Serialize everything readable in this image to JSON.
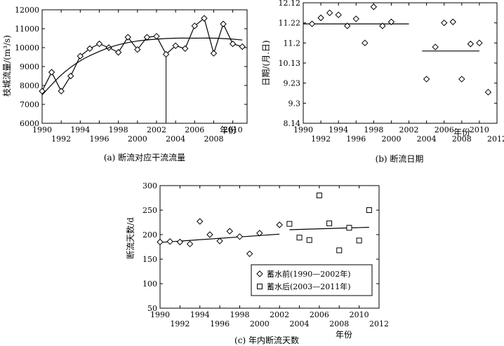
{
  "chart_data": [
    {
      "type": "line",
      "caption": "(a) 断流对应干流流量",
      "ylabel": "枝城流量/(m³/s)",
      "xlabel": "年份",
      "xlim": [
        1990,
        2011.5
      ],
      "ylim": [
        6000,
        12000
      ],
      "x_ticks": [
        1990,
        1992,
        1994,
        1996,
        1998,
        2000,
        2002,
        2004,
        2006,
        2008,
        2010
      ],
      "y_ticks": [
        6000,
        7000,
        8000,
        9000,
        10000,
        11000,
        12000
      ],
      "series": [
        {
          "marker": "diamond",
          "x": [
            1990,
            1991,
            1992,
            1993,
            1994,
            1995,
            1996,
            1997,
            1998,
            1999,
            2000,
            2001,
            2002,
            2003,
            2004,
            2005,
            2006,
            2007,
            2008,
            2009,
            2010,
            2011
          ],
          "y": [
            7700,
            8700,
            7700,
            8500,
            9550,
            9950,
            10200,
            10000,
            9750,
            10550,
            9900,
            10550,
            10600,
            9650,
            10100,
            9950,
            11150,
            11550,
            9700,
            11250,
            10200,
            10050
          ]
        },
        {
          "style": "smooth-trend",
          "x": [
            1990,
            1992,
            1994,
            1996,
            1998,
            2000,
            2002,
            2004,
            2006,
            2008,
            2010,
            2011
          ],
          "y": [
            7500,
            8550,
            9300,
            9800,
            10150,
            10350,
            10450,
            10500,
            10500,
            10500,
            10450,
            10400
          ]
        }
      ],
      "annotations": [
        {
          "type": "vertical-line",
          "x": 2003
        }
      ]
    },
    {
      "type": "scatter",
      "caption": "(b) 断流日期",
      "ylabel": "日期/(月.日)",
      "xlabel": "年份",
      "xlim": [
        1990,
        2012
      ],
      "ylim": [
        0,
        6
      ],
      "x_ticks": [
        1990,
        1992,
        1994,
        1996,
        1998,
        2000,
        2002,
        2004,
        2006,
        2008,
        2010,
        2012
      ],
      "y_ticks": [
        0,
        1,
        2,
        3,
        4,
        5,
        6
      ],
      "y_tick_labels": [
        "8.14",
        "9.3",
        "9.23",
        "10.13",
        "11.2",
        "11.22",
        "12.12"
      ],
      "series": [
        {
          "marker": "diamond",
          "x": [
            1991,
            1992,
            1993,
            1994,
            1995,
            1996,
            1997,
            1998,
            1999,
            2000,
            2004,
            2005,
            2006,
            2007,
            2008,
            2009,
            2010,
            2011
          ],
          "y": [
            4.95,
            5.25,
            5.5,
            5.4,
            4.85,
            5.2,
            4.0,
            5.8,
            4.85,
            5.05,
            2.2,
            3.8,
            5.0,
            5.05,
            2.2,
            3.95,
            4.0,
            1.55
          ]
        }
      ],
      "trend_lines": [
        {
          "x": [
            1990,
            2002
          ],
          "y": [
            4.95,
            4.95
          ]
        },
        {
          "x": [
            2003.5,
            2010
          ],
          "y": [
            3.6,
            3.6
          ]
        }
      ]
    },
    {
      "type": "scatter",
      "caption": "(c) 年内断流天数",
      "ylabel": "断流天数/d",
      "xlabel": "年份",
      "xlim": [
        1990,
        2012
      ],
      "ylim": [
        50,
        300
      ],
      "x_ticks": [
        1990,
        1992,
        1994,
        1996,
        1998,
        2000,
        2002,
        2004,
        2006,
        2008,
        2010,
        2012
      ],
      "y_ticks": [
        50,
        100,
        150,
        200,
        250,
        300
      ],
      "legend": "lower-right",
      "series": [
        {
          "name": "蓄水前(1990—2002年)",
          "marker": "diamond",
          "x": [
            1990,
            1991,
            1992,
            1993,
            1994,
            1995,
            1996,
            1997,
            1998,
            1999,
            2000,
            2002
          ],
          "y": [
            185,
            186,
            185,
            181,
            227,
            200,
            187,
            207,
            196,
            161,
            203,
            220
          ]
        },
        {
          "name": "蓄水后(2003—2011年)",
          "marker": "square",
          "x": [
            2003,
            2004,
            2005,
            2006,
            2007,
            2008,
            2009,
            2010,
            2011
          ],
          "y": [
            222,
            194,
            189,
            280,
            223,
            168,
            214,
            188,
            250
          ]
        }
      ],
      "trend_lines": [
        {
          "x": [
            1990,
            2002
          ],
          "y": [
            184,
            201
          ]
        },
        {
          "x": [
            2003,
            2011
          ],
          "y": [
            210,
            215
          ]
        }
      ]
    }
  ]
}
